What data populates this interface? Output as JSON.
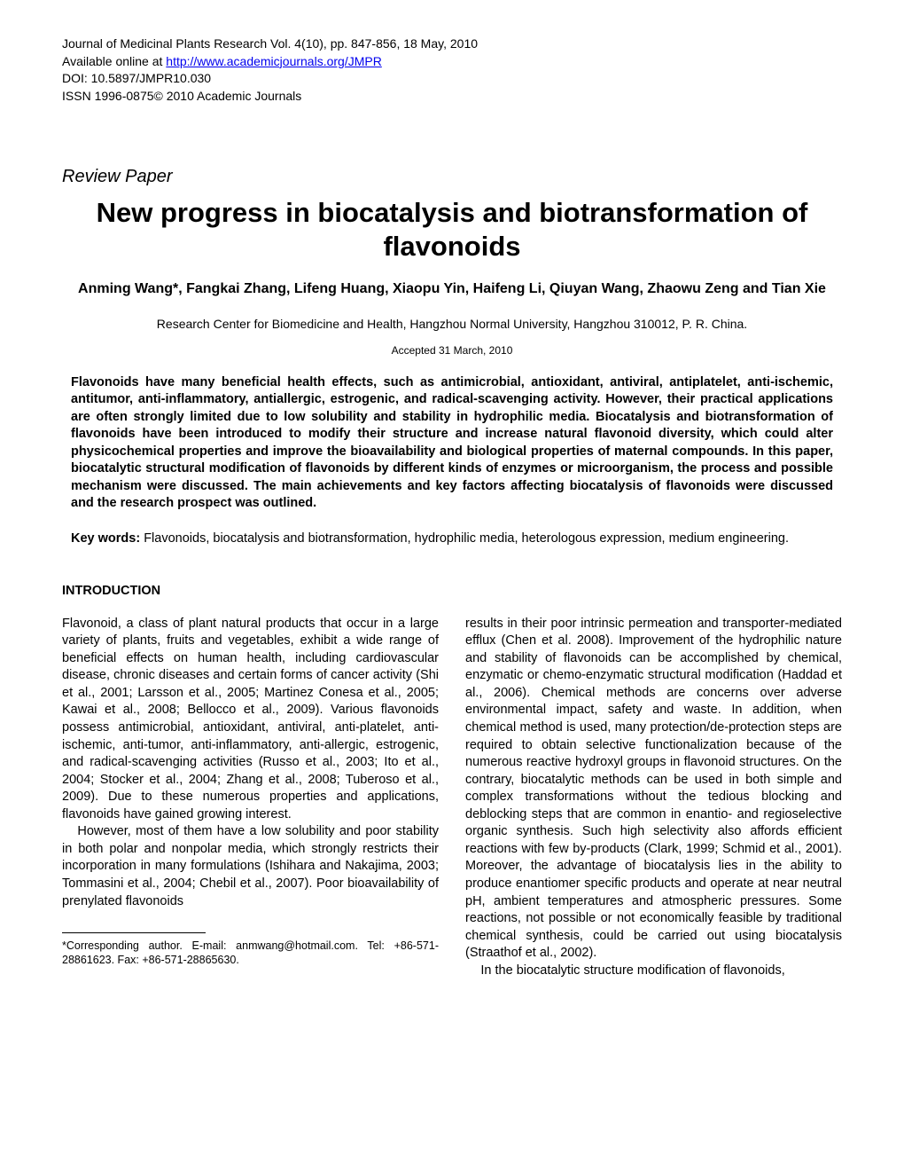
{
  "header": {
    "line1": "Journal of Medicinal Plants Research Vol. 4(10), pp. 847-856, 18 May, 2010",
    "line2_prefix": "Available online at ",
    "line2_link": "http://www.academicjournals.org/JMPR",
    "line3": "DOI: 10.5897/JMPR10.030",
    "line4": "ISSN 1996-0875© 2010 Academic Journals"
  },
  "paper_type": "Review Paper",
  "title": "New progress in biocatalysis and biotransformation of flavonoids",
  "authors": "Anming Wang*, Fangkai Zhang, Lifeng Huang, Xiaopu Yin, Haifeng Li, Qiuyan Wang, Zhaowu Zeng and Tian Xie",
  "affiliation": "Research Center for Biomedicine and Health, Hangzhou Normal University, Hangzhou 310012, P. R. China.",
  "accepted": "Accepted 31 March, 2010",
  "abstract": "Flavonoids have many beneficial health effects, such as antimicrobial, antioxidant, antiviral, antiplatelet, anti-ischemic, antitumor, anti-inflammatory, antiallergic, estrogenic, and radical-scavenging activity. However, their practical applications are often strongly limited due to low solubility and stability in hydrophilic media. Biocatalysis and biotransformation of flavonoids have been introduced to modify their structure and increase natural flavonoid diversity, which could alter physicochemical properties and improve the bioavailability and biological properties of maternal compounds. In this paper, biocatalytic structural modification of flavonoids by different kinds of enzymes or microorganism, the process and possible mechanism were discussed. The main achievements and key factors affecting biocatalysis of flavonoids were discussed and the research prospect was outlined.",
  "keywords_label": "Key words:",
  "keywords_text": " Flavonoids, biocatalysis and biotransformation, hydrophilic media, heterologous expression, medium engineering.",
  "section_heading": "INTRODUCTION",
  "col_left": {
    "p1": "Flavonoid, a class of plant natural products that occur in a large variety of plants, fruits and vegetables, exhibit a wide range of beneficial effects on human health, including cardiovascular disease, chronic diseases and certain forms of cancer activity (Shi et al., 2001; Larsson et al., 2005; Martinez Conesa et al., 2005; Kawai et al., 2008; Bellocco et al., 2009). Various flavonoids possess antimicrobial, antioxidant, antiviral, anti-platelet, anti-ischemic, anti-tumor, anti-inflammatory, anti-allergic, estrogenic, and radical-scavenging activities (Russo et al., 2003; Ito et al., 2004; Stocker et al., 2004; Zhang et al., 2008; Tuberoso et al., 2009). Due to these numerous properties and applications, flavonoids have gained growing interest.",
    "p2": "However, most of them have a low solubility and poor stability in both polar and nonpolar media, which strongly restricts their incorporation in many formulations (Ishihara and Nakajima, 2003; Tommasini et al., 2004; Chebil et al., 2007). Poor bioavailability  of   prenylated   flavonoids"
  },
  "col_right": {
    "p1": "results in their poor intrinsic permeation and transporter-mediated efflux (Chen et al. 2008). Improvement of the hydrophilic nature and stability of flavonoids can be accomplished by chemical, enzymatic or chemo-enzymatic structural modification (Haddad et al., 2006). Chemical methods are concerns over adverse environmental impact, safety and waste. In addition, when chemical method is used, many protection/de-protection steps are required to obtain selective functionalization because of the numerous reactive hydroxyl groups in flavonoid structures. On the contrary, biocatalytic methods can be used in both simple and complex transformations without the tedious blocking and deblocking steps that are common in enantio- and regioselective organic synthesis. Such high selectivity also affords efficient reactions with few by-products (Clark, 1999; Schmid et al., 2001). Moreover, the advantage of biocatalysis lies in the ability to produce enantiomer specific products and operate at near neutral pH, ambient temperatures and atmospheric pressures. Some reactions, not possible or not economically feasible by traditional chemical synthesis, could be carried out using biocatalysis (Straathof et al., 2002).",
    "p2": "In   the  biocatalytic structure modification of flavonoids,"
  },
  "footnote": "*Corresponding author. E-mail: anmwang@hotmail.com. Tel: +86-571-28861623. Fax: +86-571-28865630."
}
